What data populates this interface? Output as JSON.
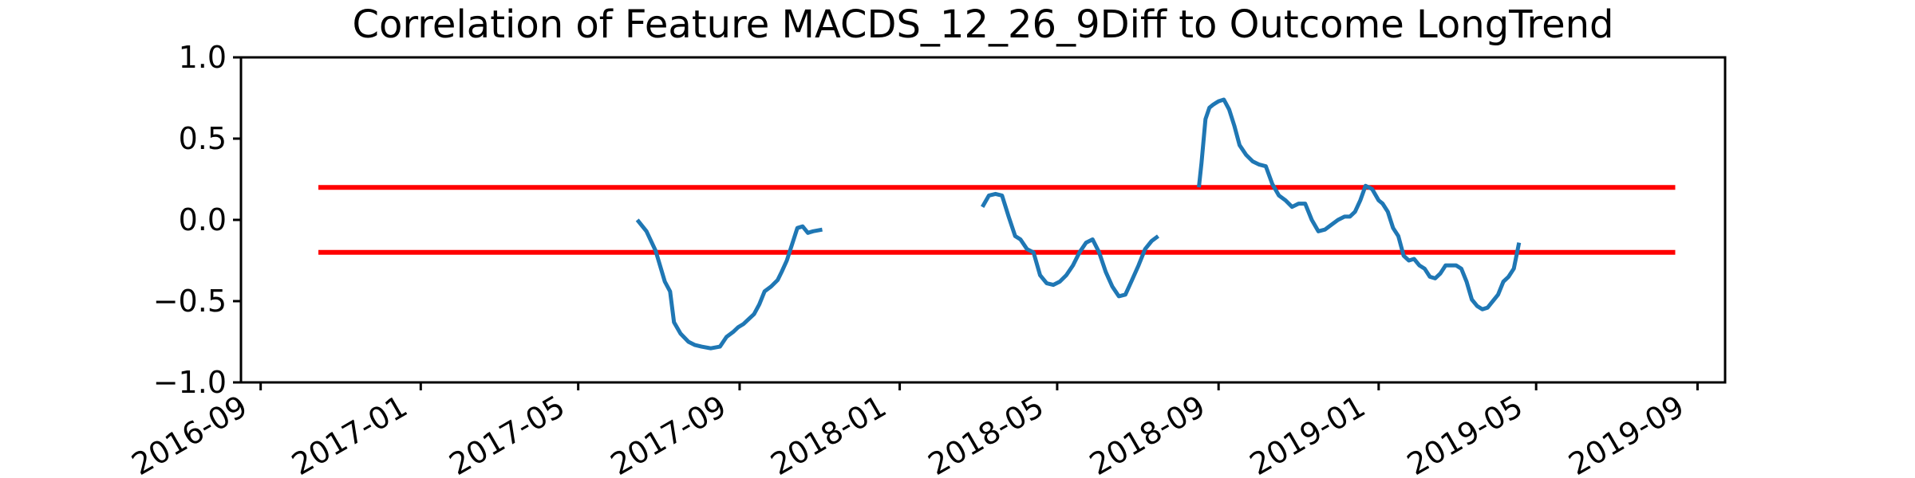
{
  "chart_data": {
    "type": "line",
    "title": "Correlation of Feature MACDS_12_26_9Diff to Outcome LongTrend",
    "xlabel": "",
    "ylabel": "",
    "ylim": [
      -1.0,
      1.0
    ],
    "xlim": [
      "2016-08-17",
      "2019-09-22"
    ],
    "y_ticks": [
      {
        "value": -1.0,
        "label": "−1.0"
      },
      {
        "value": -0.5,
        "label": "−0.5"
      },
      {
        "value": 0.0,
        "label": "0.0"
      },
      {
        "value": 0.5,
        "label": "0.5"
      },
      {
        "value": 1.0,
        "label": "1.0"
      }
    ],
    "x_ticks": [
      "2016-09",
      "2017-01",
      "2017-05",
      "2017-09",
      "2018-01",
      "2018-05",
      "2018-09",
      "2019-01",
      "2019-05",
      "2019-09"
    ],
    "grid": false,
    "colors": {
      "series": "#1f77b4",
      "threshold": "#ff0000"
    },
    "thresholds": [
      {
        "y": 0.2,
        "x": [
          "2016-10-15",
          "2019-08-15"
        ]
      },
      {
        "y": -0.2,
        "x": [
          "2016-10-15",
          "2019-08-15"
        ]
      }
    ],
    "series": [
      {
        "segments": [
          {
            "x": [
              "2017-06-15",
              "2017-06-22",
              "2017-06-29",
              "2017-07-06",
              "2017-07-10",
              "2017-07-13",
              "2017-07-18",
              "2017-07-24",
              "2017-07-29",
              "2017-08-03",
              "2017-08-10",
              "2017-08-17",
              "2017-08-22",
              "2017-08-27",
              "2017-08-31",
              "2017-09-04",
              "2017-09-08",
              "2017-09-12",
              "2017-09-16",
              "2017-09-20",
              "2017-09-25",
              "2017-09-30",
              "2017-10-03",
              "2017-10-07",
              "2017-10-11",
              "2017-10-15",
              "2017-10-19",
              "2017-10-23",
              "2017-10-27",
              "2017-11-03"
            ],
            "y": [
              0.0,
              -0.07,
              -0.19,
              -0.38,
              -0.44,
              -0.63,
              -0.7,
              -0.75,
              -0.77,
              -0.78,
              -0.79,
              -0.78,
              -0.72,
              -0.69,
              -0.66,
              -0.64,
              -0.61,
              -0.58,
              -0.52,
              -0.44,
              -0.41,
              -0.37,
              -0.32,
              -0.25,
              -0.15,
              -0.05,
              -0.04,
              -0.08,
              -0.07,
              -0.06
            ]
          },
          {
            "x": [
              "2018-03-05",
              "2018-03-10",
              "2018-03-15",
              "2018-03-20",
              "2018-03-25",
              "2018-03-30",
              "2018-04-03",
              "2018-04-08",
              "2018-04-13",
              "2018-04-18",
              "2018-04-23",
              "2018-04-28",
              "2018-05-03",
              "2018-05-08",
              "2018-05-13",
              "2018-05-18",
              "2018-05-23",
              "2018-05-28",
              "2018-06-02",
              "2018-06-07",
              "2018-06-12",
              "2018-06-17",
              "2018-06-22",
              "2018-06-27",
              "2018-07-02",
              "2018-07-07",
              "2018-07-12",
              "2018-07-17"
            ],
            "y": [
              0.08,
              0.15,
              0.16,
              0.15,
              0.02,
              -0.1,
              -0.12,
              -0.18,
              -0.2,
              -0.34,
              -0.39,
              -0.4,
              -0.38,
              -0.34,
              -0.28,
              -0.2,
              -0.14,
              -0.12,
              -0.2,
              -0.32,
              -0.41,
              -0.47,
              -0.46,
              -0.37,
              -0.28,
              -0.18,
              -0.13,
              -0.1
            ]
          },
          {
            "x": [
              "2018-08-17",
              "2018-08-19",
              "2018-08-22",
              "2018-08-25",
              "2018-08-28",
              "2018-09-01",
              "2018-09-05",
              "2018-09-09",
              "2018-09-13",
              "2018-09-17",
              "2018-09-22",
              "2018-09-27",
              "2018-10-02",
              "2018-10-07",
              "2018-10-12",
              "2018-10-17",
              "2018-10-22",
              "2018-10-27",
              "2018-11-01",
              "2018-11-06",
              "2018-11-11",
              "2018-11-16",
              "2018-11-21",
              "2018-11-26",
              "2018-12-01",
              "2018-12-06",
              "2018-12-10",
              "2018-12-14",
              "2018-12-18",
              "2018-12-22",
              "2018-12-27",
              "2019-01-01",
              "2019-01-04",
              "2019-01-08",
              "2019-01-12",
              "2019-01-16",
              "2019-01-20",
              "2019-01-24",
              "2019-01-28",
              "2019-02-01",
              "2019-02-05",
              "2019-02-09",
              "2019-02-13",
              "2019-02-17",
              "2019-02-21",
              "2019-02-25",
              "2019-03-01",
              "2019-03-05",
              "2019-03-09",
              "2019-03-13",
              "2019-03-17",
              "2019-03-21",
              "2019-03-25",
              "2019-03-29",
              "2019-04-02",
              "2019-04-06",
              "2019-04-10",
              "2019-04-14",
              "2019-04-18"
            ],
            "y": [
              0.2,
              0.35,
              0.62,
              0.69,
              0.71,
              0.73,
              0.74,
              0.68,
              0.58,
              0.46,
              0.4,
              0.36,
              0.34,
              0.33,
              0.22,
              0.15,
              0.12,
              0.08,
              0.1,
              0.1,
              0.0,
              -0.07,
              -0.06,
              -0.03,
              0.0,
              0.02,
              0.02,
              0.05,
              0.12,
              0.21,
              0.19,
              0.12,
              0.1,
              0.05,
              -0.05,
              -0.1,
              -0.22,
              -0.25,
              -0.24,
              -0.28,
              -0.3,
              -0.35,
              -0.36,
              -0.33,
              -0.28,
              -0.28,
              -0.28,
              -0.3,
              -0.38,
              -0.49,
              -0.53,
              -0.55,
              -0.54,
              -0.5,
              -0.46,
              -0.38,
              -0.35,
              -0.3,
              -0.14
            ]
          }
        ]
      }
    ]
  }
}
